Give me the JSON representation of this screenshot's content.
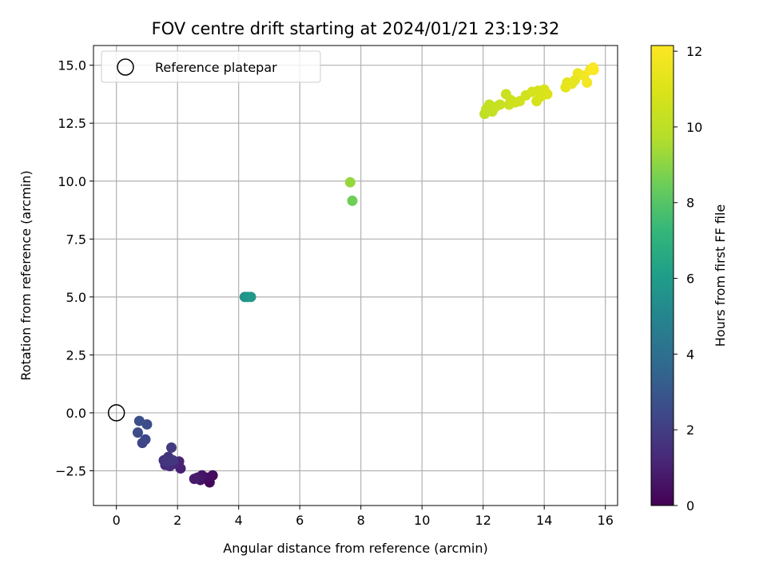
{
  "chart_data": {
    "type": "scatter",
    "title": "FOV centre drift starting at 2024/01/21 23:19:32",
    "xlabel": "Angular distance from reference (arcmin)",
    "ylabel": "Rotation from reference (arcmin)",
    "xlim": [
      -0.75,
      16.4
    ],
    "ylim": [
      -4.0,
      15.85
    ],
    "xticks": [
      0,
      2,
      4,
      6,
      8,
      10,
      12,
      14,
      16
    ],
    "xtick_labels": [
      "0",
      "2",
      "4",
      "6",
      "8",
      "10",
      "12",
      "14",
      "16"
    ],
    "yticks": [
      -2.5,
      0.0,
      2.5,
      5.0,
      7.5,
      10.0,
      12.5,
      15.0
    ],
    "ytick_labels": [
      "−2.5",
      "0.0",
      "2.5",
      "5.0",
      "7.5",
      "10.0",
      "12.5",
      "15.0"
    ],
    "grid": true,
    "legend": {
      "position": "top-left",
      "entries": [
        "Reference platepar"
      ]
    },
    "reference_point": {
      "x": 0,
      "y": 0,
      "label": "Reference platepar"
    },
    "colorbar": {
      "label": "Hours from first FF file",
      "colormap": "viridis",
      "range": [
        0,
        12.15
      ],
      "ticks": [
        0,
        2,
        4,
        6,
        8,
        10,
        12
      ],
      "tick_labels": [
        "0",
        "2",
        "4",
        "6",
        "8",
        "10",
        "12"
      ]
    },
    "points": [
      {
        "x": 3.05,
        "y": -3.0,
        "c": 0.2
      },
      {
        "x": 3.15,
        "y": -2.7,
        "c": 0.3
      },
      {
        "x": 2.95,
        "y": -2.8,
        "c": 0.4
      },
      {
        "x": 2.75,
        "y": -2.9,
        "c": 0.5
      },
      {
        "x": 2.8,
        "y": -2.7,
        "c": 0.6
      },
      {
        "x": 2.65,
        "y": -2.8,
        "c": 0.7
      },
      {
        "x": 2.55,
        "y": -2.85,
        "c": 0.8
      },
      {
        "x": 2.1,
        "y": -2.4,
        "c": 1.0
      },
      {
        "x": 2.05,
        "y": -2.1,
        "c": 1.1
      },
      {
        "x": 1.9,
        "y": -2.2,
        "c": 1.2
      },
      {
        "x": 1.75,
        "y": -2.3,
        "c": 1.3
      },
      {
        "x": 1.6,
        "y": -2.25,
        "c": 1.4
      },
      {
        "x": 1.55,
        "y": -2.05,
        "c": 1.5
      },
      {
        "x": 1.7,
        "y": -1.9,
        "c": 1.6
      },
      {
        "x": 1.65,
        "y": -2.1,
        "c": 1.7
      },
      {
        "x": 1.85,
        "y": -2.05,
        "c": 1.8
      },
      {
        "x": 1.8,
        "y": -1.5,
        "c": 1.9
      },
      {
        "x": 0.85,
        "y": -1.3,
        "c": 2.3
      },
      {
        "x": 0.95,
        "y": -1.15,
        "c": 2.4
      },
      {
        "x": 0.7,
        "y": -0.85,
        "c": 2.5
      },
      {
        "x": 1.0,
        "y": -0.5,
        "c": 2.6
      },
      {
        "x": 0.75,
        "y": -0.35,
        "c": 2.7
      },
      {
        "x": 4.2,
        "y": 5.0,
        "c": 5.6
      },
      {
        "x": 4.3,
        "y": 5.0,
        "c": 5.7
      },
      {
        "x": 4.4,
        "y": 5.0,
        "c": 5.8
      },
      {
        "x": 7.65,
        "y": 9.95,
        "c": 9.2
      },
      {
        "x": 7.72,
        "y": 9.15,
        "c": 8.5
      },
      {
        "x": 12.05,
        "y": 12.9,
        "c": 10.0
      },
      {
        "x": 12.1,
        "y": 13.1,
        "c": 10.1
      },
      {
        "x": 12.2,
        "y": 13.3,
        "c": 10.2
      },
      {
        "x": 12.3,
        "y": 13.0,
        "c": 10.2
      },
      {
        "x": 12.4,
        "y": 13.2,
        "c": 10.3
      },
      {
        "x": 12.55,
        "y": 13.3,
        "c": 10.3
      },
      {
        "x": 12.75,
        "y": 13.75,
        "c": 10.4
      },
      {
        "x": 12.85,
        "y": 13.3,
        "c": 10.4
      },
      {
        "x": 12.9,
        "y": 13.5,
        "c": 10.5
      },
      {
        "x": 13.05,
        "y": 13.4,
        "c": 10.5
      },
      {
        "x": 13.2,
        "y": 13.45,
        "c": 10.6
      },
      {
        "x": 13.4,
        "y": 13.7,
        "c": 10.6
      },
      {
        "x": 13.6,
        "y": 13.85,
        "c": 10.7
      },
      {
        "x": 13.75,
        "y": 13.45,
        "c": 10.8
      },
      {
        "x": 13.8,
        "y": 13.9,
        "c": 10.8
      },
      {
        "x": 13.9,
        "y": 13.65,
        "c": 10.9
      },
      {
        "x": 14.0,
        "y": 13.95,
        "c": 10.9
      },
      {
        "x": 14.1,
        "y": 13.75,
        "c": 11.0
      },
      {
        "x": 14.7,
        "y": 14.05,
        "c": 11.3
      },
      {
        "x": 14.75,
        "y": 14.25,
        "c": 11.3
      },
      {
        "x": 14.9,
        "y": 14.2,
        "c": 11.4
      },
      {
        "x": 15.0,
        "y": 14.35,
        "c": 11.4
      },
      {
        "x": 15.1,
        "y": 14.65,
        "c": 11.6
      },
      {
        "x": 15.3,
        "y": 14.55,
        "c": 11.7
      },
      {
        "x": 15.4,
        "y": 14.25,
        "c": 11.8
      },
      {
        "x": 15.5,
        "y": 14.8,
        "c": 11.9
      },
      {
        "x": 15.6,
        "y": 14.9,
        "c": 12.0
      },
      {
        "x": 15.62,
        "y": 14.8,
        "c": 12.1
      }
    ]
  }
}
